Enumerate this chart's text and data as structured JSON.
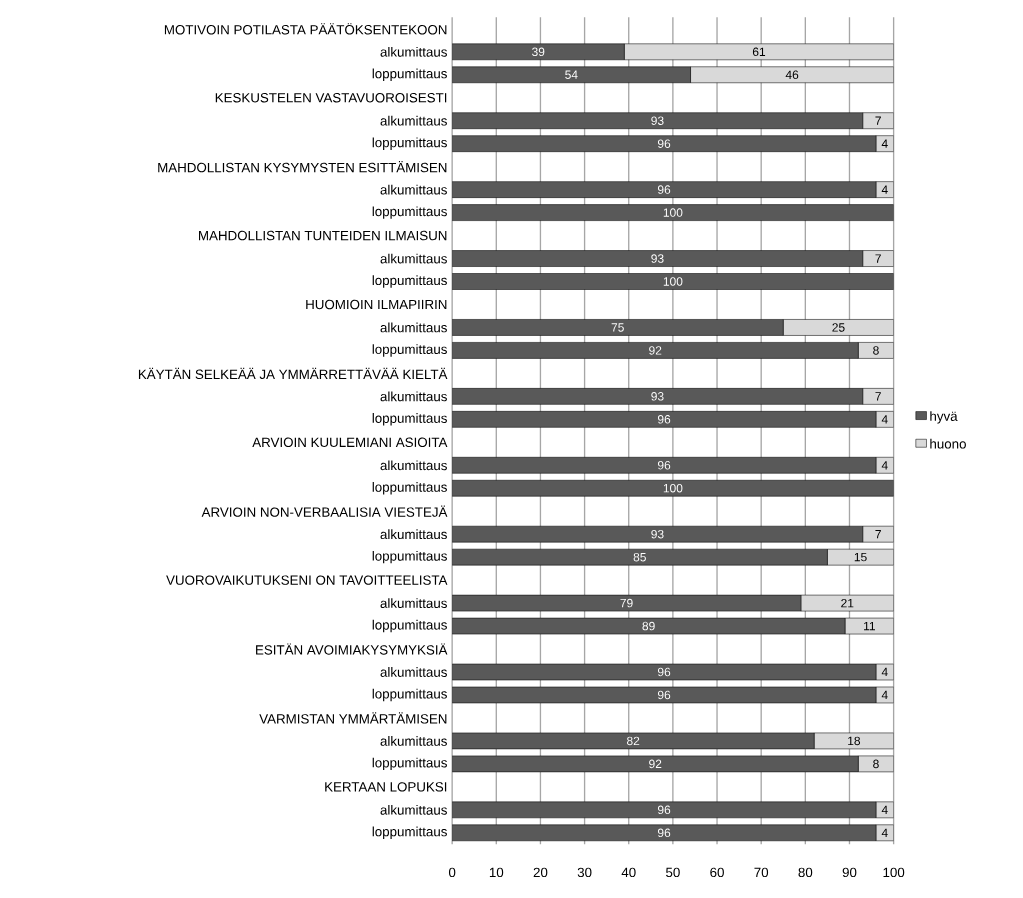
{
  "chart_data": {
    "type": "bar",
    "orientation": "horizontal",
    "stacked": true,
    "data_labels": true,
    "grid": "x",
    "legend": "right",
    "categories": [
      "MOTIVOIN POTILASTA PÄÄTÖKSENTEKOON",
      "alkumittaus",
      "loppumittaus",
      "KESKUSTELEN VASTAVUOROISESTI",
      "alkumittaus",
      "loppumittaus",
      "MAHDOLLISTAN KYSYMYSTEN ESITTÄMISEN",
      "alkumittaus",
      "loppumittaus",
      "MAHDOLLISTAN TUNTEIDEN ILMAISUN",
      "alkumittaus",
      "loppumittaus",
      "HUOMIOIN ILMAPIIRIN",
      "alkumittaus",
      "loppumittaus",
      "KÄYTÄN SELKEÄÄ JA YMMÄRRETTÄVÄÄ KIELTÄ",
      "alkumittaus",
      "loppumittaus",
      "ARVIOIN KUULEMIANI ASIOITA",
      "alkumittaus",
      "loppumittaus",
      "ARVIOIN NON-VERBAALISIA VIESTEJÄ",
      "alkumittaus",
      "loppumittaus",
      "VUOROVAIKUTUKSENI ON TAVOITTEELISTA",
      "alkumittaus",
      "loppumittaus",
      "ESITÄN AVOIMIAKYSYMYKSIÄ",
      "alkumittaus",
      "loppumittaus",
      "VARMISTAN YMMÄRTÄMISEN",
      "alkumittaus",
      "loppumittaus",
      "KERTAAN LOPUKSI",
      "alkumittaus",
      "loppumittaus"
    ],
    "series": [
      {
        "name": "hyvä",
        "color": "#595959",
        "values": [
          null,
          39,
          54,
          null,
          93,
          96,
          null,
          96,
          100,
          null,
          93,
          100,
          null,
          75,
          92,
          null,
          93,
          96,
          null,
          96,
          100,
          null,
          93,
          85,
          null,
          79,
          89,
          null,
          96,
          96,
          null,
          82,
          92,
          null,
          96,
          96
        ]
      },
      {
        "name": "huono",
        "color": "#d9d9d9",
        "values": [
          null,
          61,
          46,
          null,
          7,
          4,
          null,
          4,
          null,
          null,
          7,
          null,
          null,
          25,
          8,
          null,
          7,
          4,
          null,
          4,
          null,
          null,
          7,
          15,
          null,
          21,
          11,
          null,
          4,
          4,
          null,
          18,
          8,
          null,
          4,
          4
        ]
      }
    ],
    "xlim": [
      0,
      100
    ],
    "xticks": [
      0,
      10,
      20,
      30,
      40,
      50,
      60,
      70,
      80,
      90,
      100
    ]
  }
}
